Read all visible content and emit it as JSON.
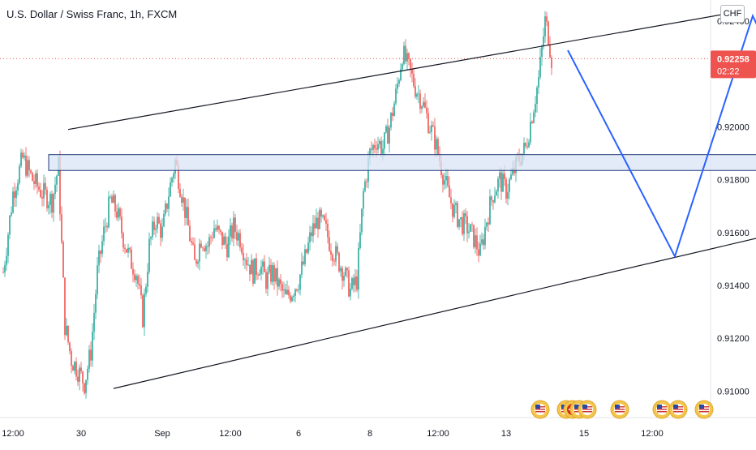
{
  "header": {
    "symbol_title": "U.S. Dollar / Swiss Franc, 1h, FXCM",
    "currency_button": "CHF"
  },
  "price_label": {
    "value": "0.92258",
    "countdown": "02:22"
  },
  "colors": {
    "up": "#26a69a",
    "down": "#ef5350",
    "trendline": "#131722",
    "pattern": "#2962ff",
    "zone_fill": "#dbe4f5",
    "zone_border": "#1e3a78",
    "price_line": "#ef5350",
    "axis_text": "#131722",
    "panel_bg": "#ffffff"
  },
  "chart_data": {
    "type": "candlestick",
    "title": "U.S. Dollar / Swiss Franc, 1h, FXCM",
    "ylim": [
      0.909,
      0.9248
    ],
    "y_ticks": [
      "0.92400",
      "0.92200",
      "0.92000",
      "0.91800",
      "0.91600",
      "0.91400",
      "0.91200",
      "0.91000"
    ],
    "y_tick_values": [
      0.924,
      0.922,
      0.92,
      0.918,
      0.916,
      0.914,
      0.912,
      0.91
    ],
    "x_ticks": [
      "12:00",
      "30",
      "Sep",
      "12:00",
      "6",
      "8",
      "12:00",
      "13",
      "15",
      "12:00"
    ],
    "x_tick_bar_index": [
      6,
      48,
      98,
      140,
      182,
      226,
      268,
      310,
      358,
      400
    ],
    "last_price": 0.92258,
    "price_path": [
      [
        0,
        0.9145
      ],
      [
        6,
        0.9175
      ],
      [
        12,
        0.9188
      ],
      [
        18,
        0.918
      ],
      [
        24,
        0.9175
      ],
      [
        30,
        0.9172
      ],
      [
        34,
        0.9185
      ],
      [
        38,
        0.9125
      ],
      [
        42,
        0.9112
      ],
      [
        46,
        0.9108
      ],
      [
        50,
        0.9103
      ],
      [
        54,
        0.9115
      ],
      [
        58,
        0.9145
      ],
      [
        62,
        0.916
      ],
      [
        66,
        0.9172
      ],
      [
        70,
        0.9168
      ],
      [
        74,
        0.9158
      ],
      [
        78,
        0.915
      ],
      [
        82,
        0.9145
      ],
      [
        86,
        0.9128
      ],
      [
        90,
        0.9155
      ],
      [
        94,
        0.9165
      ],
      [
        98,
        0.916
      ],
      [
        102,
        0.9175
      ],
      [
        106,
        0.9187
      ],
      [
        110,
        0.9175
      ],
      [
        114,
        0.9162
      ],
      [
        118,
        0.9148
      ],
      [
        122,
        0.9158
      ],
      [
        126,
        0.9155
      ],
      [
        130,
        0.9162
      ],
      [
        134,
        0.9158
      ],
      [
        138,
        0.9155
      ],
      [
        142,
        0.9162
      ],
      [
        146,
        0.9158
      ],
      [
        150,
        0.915
      ],
      [
        154,
        0.9145
      ],
      [
        158,
        0.9148
      ],
      [
        162,
        0.9142
      ],
      [
        166,
        0.9145
      ],
      [
        170,
        0.914
      ],
      [
        174,
        0.9135
      ],
      [
        178,
        0.9138
      ],
      [
        182,
        0.9142
      ],
      [
        186,
        0.915
      ],
      [
        190,
        0.916
      ],
      [
        194,
        0.9165
      ],
      [
        198,
        0.9162
      ],
      [
        202,
        0.9155
      ],
      [
        206,
        0.915
      ],
      [
        210,
        0.9145
      ],
      [
        214,
        0.9138
      ],
      [
        218,
        0.9142
      ],
      [
        222,
        0.9175
      ],
      [
        226,
        0.919
      ],
      [
        230,
        0.9195
      ],
      [
        234,
        0.9192
      ],
      [
        238,
        0.92
      ],
      [
        242,
        0.9212
      ],
      [
        246,
        0.9228
      ],
      [
        250,
        0.9222
      ],
      [
        254,
        0.9215
      ],
      [
        258,
        0.921
      ],
      [
        262,
        0.9202
      ],
      [
        266,
        0.9195
      ],
      [
        270,
        0.9185
      ],
      [
        274,
        0.9175
      ],
      [
        278,
        0.9168
      ],
      [
        282,
        0.9164
      ],
      [
        286,
        0.9162
      ],
      [
        290,
        0.9158
      ],
      [
        294,
        0.9152
      ],
      [
        298,
        0.9165
      ],
      [
        302,
        0.9175
      ],
      [
        306,
        0.918
      ],
      [
        310,
        0.9176
      ],
      [
        314,
        0.9182
      ],
      [
        318,
        0.9188
      ],
      [
        322,
        0.9192
      ],
      [
        326,
        0.9205
      ],
      [
        330,
        0.9218
      ],
      [
        334,
        0.924
      ],
      [
        336,
        0.9235
      ],
      [
        338,
        0.92258
      ]
    ],
    "bar_count": 339,
    "trendlines": [
      {
        "name": "upper-channel",
        "from": [
          40,
          0.9199
        ],
        "to": [
          457,
          0.9244
        ]
      },
      {
        "name": "lower-channel",
        "from": [
          68,
          0.9101
        ],
        "to": [
          563,
          0.9172
        ]
      }
    ],
    "zone": {
      "x_from": 28,
      "x_to": 536,
      "y_from": 0.91835,
      "y_to": 0.91895
    },
    "projection": {
      "points": [
        [
          348,
          0.9229
        ],
        [
          414,
          0.9151
        ],
        [
          462,
          0.9242
        ],
        [
          506,
          0.9184
        ]
      ],
      "arrow_end": true
    }
  }
}
